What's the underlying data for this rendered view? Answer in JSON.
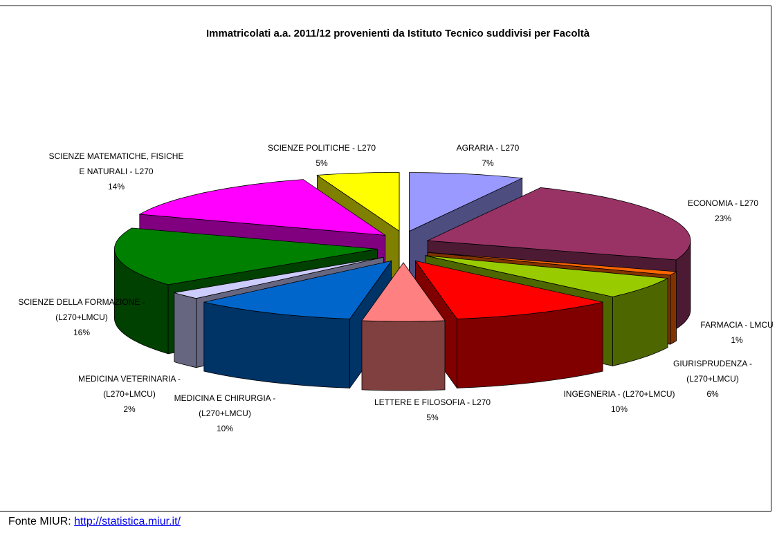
{
  "chart_data": {
    "type": "pie3d",
    "title": "Immatricolati a.a. 2011/12 provenienti da Istituto Tecnico suddivisi per Facoltà",
    "categories": [
      "AGRARIA - L270",
      "ECONOMIA - L270",
      "FARMACIA - LMCU",
      "GIURISPRUDENZA -\n(L270+LMCU)",
      "INGEGNERIA - (L270+LMCU)",
      "LETTERE E FILOSOFIA - L270",
      "MEDICINA E CHIRURGIA -\n(L270+LMCU)",
      "MEDICINA VETERINARIA -\n(L270+LMCU)",
      "SCIENZE DELLA FORMAZIONE -\n(L270+LMCU)",
      "SCIENZE MATEMATICHE, FISICHE\nE NATURALI - L270",
      "SCIENZE POLITICHE - L270"
    ],
    "values": [
      7,
      23,
      1,
      6,
      10,
      5,
      10,
      2,
      16,
      14,
      5
    ],
    "value_labels": [
      "7%",
      "23%",
      "1%",
      "6%",
      "10%",
      "5%",
      "10%",
      "2%",
      "16%",
      "14%",
      "5%"
    ],
    "colors": [
      "#9999ff",
      "#993366",
      "#ff6600",
      "#99cc00",
      "#ff0000",
      "#ff8080",
      "#0066cc",
      "#ccccff",
      "#008000",
      "#ff00ff",
      "#ffff00"
    ]
  },
  "footer": {
    "source": "Fonte MIUR:",
    "link": "http://statistica.miur.it/"
  }
}
